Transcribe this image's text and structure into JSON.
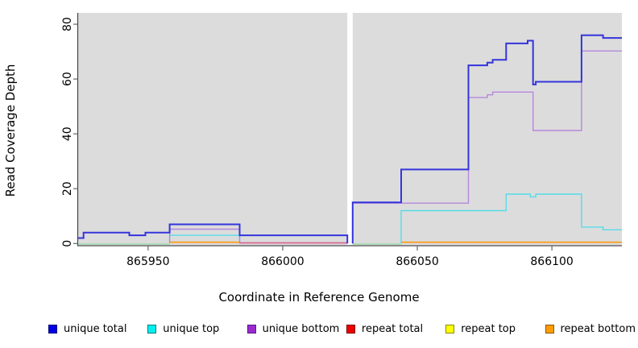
{
  "figure": {
    "background": "#ffffff",
    "panel_background": "#dcdcdc",
    "gap_background": "#ffffff",
    "axis_color": "#444444",
    "tick_color": "#666666"
  },
  "chart_data": {
    "type": "line",
    "subtype": "step-coverage-plot",
    "title": "",
    "xlabel": "Coordinate in Reference Genome",
    "ylabel": "Read Coverage Depth",
    "xlim": [
      865924,
      866126
    ],
    "ylim": [
      0,
      80
    ],
    "grid": false,
    "legend_position": "bottom",
    "x_ticks": [
      865950,
      866000,
      866050,
      866100
    ],
    "x_tick_labels": [
      "865950",
      "866000",
      "866050",
      "866100"
    ],
    "y_ticks": [
      0,
      20,
      40,
      60,
      80
    ],
    "y_tick_labels": [
      "0",
      "20",
      "40",
      "60",
      "80"
    ],
    "white_gap_x": [
      866024,
      866026
    ],
    "series": [
      {
        "id": "unique_total",
        "label": "unique total",
        "legend_fill": "#0000e5",
        "legend_border": "#000080",
        "line_color": "#3434dc",
        "line_width": 2,
        "segments": [
          [
            [
              865924,
              2
            ],
            [
              865926,
              4
            ],
            [
              865943,
              3
            ],
            [
              865949,
              4
            ],
            [
              865958,
              7
            ],
            [
              865984,
              3
            ],
            [
              866024,
              3
            ],
            [
              866024,
              0
            ]
          ],
          [
            [
              866026,
              0
            ],
            [
              866026,
              15
            ],
            [
              866044,
              27
            ],
            [
              866069,
              65
            ],
            [
              866076,
              66
            ],
            [
              866078,
              67
            ],
            [
              866083,
              73
            ],
            [
              866091,
              74
            ],
            [
              866093,
              58
            ],
            [
              866094,
              59
            ],
            [
              866111,
              76
            ],
            [
              866119,
              75
            ],
            [
              866126,
              75
            ]
          ]
        ]
      },
      {
        "id": "unique_top",
        "label": "unique top",
        "legend_fill": "#00f0f0",
        "legend_border": "#007a7a",
        "line_color": "#55dce8",
        "line_width": 1.4,
        "segments": [
          [
            [
              865958,
              0
            ],
            [
              865958,
              3
            ],
            [
              865984,
              3
            ],
            [
              865984,
              0
            ]
          ],
          [
            [
              866044,
              0
            ],
            [
              866044,
              12
            ],
            [
              866083,
              18
            ],
            [
              866092,
              17
            ],
            [
              866094,
              18
            ],
            [
              866111,
              6
            ],
            [
              866119,
              5
            ],
            [
              866126,
              5
            ]
          ]
        ]
      },
      {
        "id": "unique_bottom",
        "label": "unique bottom",
        "legend_fill": "#9a2acf",
        "legend_border": "#551a8b",
        "line_color": "#b588dd",
        "line_width": 1.4,
        "segments": [
          [
            [
              865958,
              0
            ],
            [
              865958,
              5
            ],
            [
              865984,
              5
            ],
            [
              865984,
              0
            ],
            [
              866024,
              0
            ]
          ],
          [
            [
              866026,
              0
            ],
            [
              866026,
              14.5
            ],
            [
              866069,
              53
            ],
            [
              866076,
              54
            ],
            [
              866078,
              55
            ],
            [
              866093,
              41
            ],
            [
              866111,
              70
            ],
            [
              866126,
              70
            ]
          ]
        ]
      },
      {
        "id": "repeat_total",
        "label": "repeat total",
        "legend_fill": "#ee0000",
        "legend_border": "#7a0000",
        "line_color": "#de6287",
        "line_width": 1.4,
        "segments": [
          [
            [
              865984,
              0
            ],
            [
              866024,
              0
            ]
          ]
        ]
      },
      {
        "id": "repeat_top",
        "label": "repeat top",
        "legend_fill": "#ffff00",
        "legend_border": "#8a8a00",
        "line_color": "#98d9a8",
        "line_width": 1.4,
        "segments": [
          [
            [
              865924,
              0
            ],
            [
              865958,
              0
            ]
          ],
          [
            [
              866026,
              0
            ],
            [
              866044,
              0
            ]
          ]
        ]
      },
      {
        "id": "repeat_bottom",
        "label": "repeat bottom",
        "legend_fill": "#ff9d00",
        "legend_border": "#8a5600",
        "line_color": "#ff9810",
        "line_width": 1.6,
        "segments": [
          [
            [
              865958,
              0
            ],
            [
              865984,
              0
            ]
          ],
          [
            [
              866044,
              0
            ],
            [
              866126,
              0
            ]
          ]
        ]
      }
    ]
  }
}
